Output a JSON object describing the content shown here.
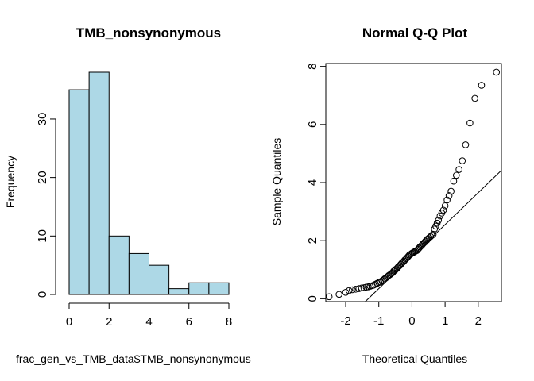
{
  "chart_data": [
    {
      "type": "bar",
      "title": "TMB_nonsynonymous",
      "xlabel": "frac_gen_vs_TMB_data$TMB_nonsynonymous",
      "ylabel": "Frequency",
      "bin_edges": [
        0,
        1,
        2,
        3,
        4,
        5,
        6,
        7,
        8
      ],
      "values": [
        35,
        38,
        10,
        7,
        5,
        1,
        2,
        2
      ],
      "bar_color": "#add8e6",
      "xticks": [
        "0",
        "2",
        "4",
        "6",
        "8"
      ],
      "yticks": [
        "0",
        "10",
        "20",
        "30"
      ],
      "xlim": [
        0,
        8
      ],
      "ylim": [
        0,
        38
      ]
    },
    {
      "type": "scatter",
      "title": "Normal Q-Q Plot",
      "xlabel": "Theoretical Quantiles",
      "ylabel": "Sample Quantiles",
      "xticks": [
        "-2",
        "-1",
        "0",
        "1",
        "2"
      ],
      "yticks": [
        "0",
        "2",
        "4",
        "6",
        "8"
      ],
      "xlim": [
        -2.6,
        2.7
      ],
      "ylim": [
        -0.1,
        8.1
      ],
      "reference_line": {
        "intercept": 1.45,
        "slope": 1.1
      },
      "points": [
        [
          -2.5,
          0.07
        ],
        [
          -2.2,
          0.15
        ],
        [
          -2.0,
          0.22
        ],
        [
          -1.9,
          0.28
        ],
        [
          -1.8,
          0.31
        ],
        [
          -1.7,
          0.33
        ],
        [
          -1.6,
          0.35
        ],
        [
          -1.52,
          0.37
        ],
        [
          -1.45,
          0.38
        ],
        [
          -1.38,
          0.4
        ],
        [
          -1.32,
          0.41
        ],
        [
          -1.26,
          0.43
        ],
        [
          -1.2,
          0.45
        ],
        [
          -1.15,
          0.47
        ],
        [
          -1.1,
          0.5
        ],
        [
          -1.05,
          0.53
        ],
        [
          -1.0,
          0.56
        ],
        [
          -0.95,
          0.58
        ],
        [
          -0.9,
          0.62
        ],
        [
          -0.86,
          0.65
        ],
        [
          -0.82,
          0.69
        ],
        [
          -0.78,
          0.72
        ],
        [
          -0.74,
          0.76
        ],
        [
          -0.7,
          0.8
        ],
        [
          -0.66,
          0.83
        ],
        [
          -0.62,
          0.87
        ],
        [
          -0.58,
          0.9
        ],
        [
          -0.55,
          0.95
        ],
        [
          -0.51,
          0.98
        ],
        [
          -0.48,
          1.02
        ],
        [
          -0.44,
          1.06
        ],
        [
          -0.41,
          1.1
        ],
        [
          -0.37,
          1.14
        ],
        [
          -0.34,
          1.18
        ],
        [
          -0.31,
          1.22
        ],
        [
          -0.27,
          1.26
        ],
        [
          -0.24,
          1.3
        ],
        [
          -0.21,
          1.34
        ],
        [
          -0.17,
          1.38
        ],
        [
          -0.14,
          1.42
        ],
        [
          -0.11,
          1.46
        ],
        [
          -0.08,
          1.5
        ],
        [
          -0.04,
          1.53
        ],
        [
          -0.01,
          1.56
        ],
        [
          0.02,
          1.58
        ],
        [
          0.05,
          1.6
        ],
        [
          0.08,
          1.62
        ],
        [
          0.11,
          1.64
        ],
        [
          0.15,
          1.66
        ],
        [
          0.18,
          1.7
        ],
        [
          0.21,
          1.74
        ],
        [
          0.24,
          1.78
        ],
        [
          0.28,
          1.82
        ],
        [
          0.31,
          1.86
        ],
        [
          0.34,
          1.9
        ],
        [
          0.38,
          1.94
        ],
        [
          0.41,
          1.98
        ],
        [
          0.45,
          2.02
        ],
        [
          0.48,
          2.06
        ],
        [
          0.52,
          2.1
        ],
        [
          0.56,
          2.14
        ],
        [
          0.6,
          2.18
        ],
        [
          0.64,
          2.22
        ],
        [
          0.68,
          2.4
        ],
        [
          0.72,
          2.5
        ],
        [
          0.76,
          2.6
        ],
        [
          0.8,
          2.7
        ],
        [
          0.85,
          2.85
        ],
        [
          0.9,
          2.95
        ],
        [
          0.95,
          3.05
        ],
        [
          1.0,
          3.2
        ],
        [
          1.06,
          3.4
        ],
        [
          1.12,
          3.55
        ],
        [
          1.18,
          3.7
        ],
        [
          1.26,
          4.05
        ],
        [
          1.34,
          4.25
        ],
        [
          1.42,
          4.45
        ],
        [
          1.52,
          4.75
        ],
        [
          1.62,
          5.3
        ],
        [
          1.75,
          6.05
        ],
        [
          1.9,
          6.9
        ],
        [
          2.1,
          7.35
        ],
        [
          2.55,
          7.8
        ]
      ]
    }
  ]
}
